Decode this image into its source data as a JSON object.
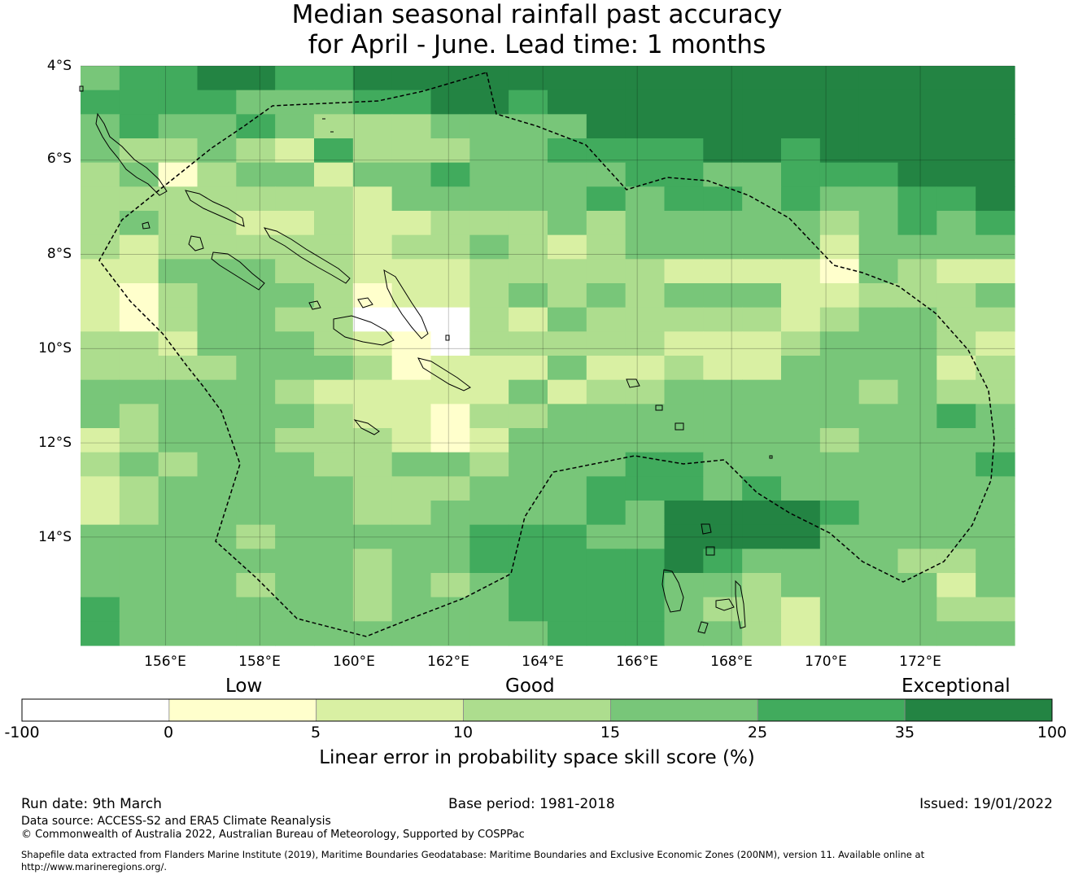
{
  "title_line1": "Median seasonal rainfall past accuracy",
  "title_line2": "for April - June. Lead time: 1 months",
  "map": {
    "lon_min": 154.2,
    "lon_max": 174.0,
    "lat_top": -4.0,
    "lat_bottom": -16.3,
    "lat_ticks": [
      {
        "value": -4,
        "label": "4°S"
      },
      {
        "value": -6,
        "label": "6°S"
      },
      {
        "value": -8,
        "label": "8°S"
      },
      {
        "value": -10,
        "label": "10°S"
      },
      {
        "value": -12,
        "label": "12°S"
      },
      {
        "value": -14,
        "label": "14°S"
      }
    ],
    "lon_ticks": [
      {
        "value": 156,
        "label": "156°E"
      },
      {
        "value": 158,
        "label": "158°E"
      },
      {
        "value": 160,
        "label": "160°E"
      },
      {
        "value": 162,
        "label": "162°E"
      },
      {
        "value": 164,
        "label": "164°E"
      },
      {
        "value": 166,
        "label": "166°E"
      },
      {
        "value": 168,
        "label": "168°E"
      },
      {
        "value": 170,
        "label": "170°E"
      },
      {
        "value": 172,
        "label": "172°E"
      }
    ],
    "grid_note": "rows from 4.0°S southward in 0.55° steps, columns from 154.2°E in 0.833° steps; values are skill categories 0-6",
    "grid": [
      [
        4,
        5,
        5,
        6,
        6,
        5,
        5,
        6,
        6,
        6,
        6,
        6,
        6,
        6,
        6,
        6,
        6,
        6,
        6,
        6,
        6,
        6,
        6,
        6
      ],
      [
        5,
        5,
        5,
        5,
        4,
        4,
        4,
        5,
        5,
        6,
        6,
        5,
        6,
        6,
        6,
        6,
        6,
        6,
        6,
        6,
        6,
        6,
        6,
        6
      ],
      [
        4,
        5,
        4,
        4,
        5,
        4,
        3,
        3,
        3,
        4,
        4,
        4,
        4,
        6,
        6,
        6,
        6,
        6,
        6,
        6,
        6,
        6,
        6,
        6
      ],
      [
        4,
        3,
        3,
        4,
        3,
        2,
        5,
        3,
        3,
        3,
        4,
        4,
        5,
        5,
        5,
        5,
        6,
        6,
        5,
        6,
        6,
        6,
        6,
        6
      ],
      [
        3,
        4,
        1,
        3,
        4,
        4,
        2,
        4,
        4,
        5,
        4,
        4,
        4,
        4,
        5,
        5,
        4,
        4,
        5,
        5,
        5,
        6,
        6,
        6
      ],
      [
        3,
        3,
        3,
        3,
        3,
        3,
        3,
        2,
        4,
        4,
        4,
        4,
        4,
        5,
        4,
        5,
        5,
        4,
        5,
        4,
        4,
        5,
        5,
        6
      ],
      [
        3,
        4,
        3,
        3,
        2,
        2,
        3,
        2,
        2,
        3,
        3,
        3,
        4,
        3,
        4,
        4,
        4,
        4,
        4,
        3,
        4,
        5,
        4,
        5
      ],
      [
        3,
        2,
        3,
        3,
        3,
        3,
        3,
        2,
        3,
        3,
        4,
        3,
        2,
        3,
        4,
        4,
        4,
        4,
        4,
        2,
        4,
        4,
        4,
        4
      ],
      [
        2,
        2,
        4,
        4,
        4,
        3,
        3,
        2,
        2,
        2,
        3,
        3,
        3,
        3,
        3,
        2,
        2,
        2,
        2,
        1,
        4,
        3,
        2,
        2
      ],
      [
        2,
        1,
        3,
        4,
        4,
        4,
        3,
        1,
        2,
        2,
        3,
        4,
        3,
        4,
        3,
        4,
        4,
        4,
        2,
        2,
        3,
        3,
        3,
        4
      ],
      [
        2,
        1,
        3,
        4,
        4,
        3,
        3,
        0,
        0,
        0,
        3,
        2,
        4,
        3,
        3,
        3,
        3,
        3,
        2,
        3,
        4,
        4,
        3,
        3
      ],
      [
        3,
        3,
        2,
        4,
        4,
        4,
        3,
        2,
        1,
        0,
        3,
        3,
        3,
        3,
        3,
        2,
        2,
        2,
        3,
        4,
        4,
        4,
        3,
        2
      ],
      [
        3,
        3,
        3,
        3,
        4,
        4,
        4,
        3,
        1,
        2,
        2,
        2,
        4,
        2,
        2,
        3,
        2,
        2,
        4,
        4,
        4,
        4,
        2,
        3
      ],
      [
        4,
        4,
        4,
        4,
        4,
        3,
        2,
        2,
        2,
        2,
        2,
        4,
        2,
        3,
        3,
        4,
        4,
        4,
        4,
        4,
        3,
        4,
        3,
        3
      ],
      [
        4,
        3,
        4,
        4,
        4,
        4,
        3,
        2,
        2,
        1,
        3,
        3,
        4,
        4,
        4,
        4,
        4,
        4,
        4,
        4,
        4,
        4,
        5,
        4
      ],
      [
        2,
        3,
        4,
        4,
        4,
        3,
        3,
        3,
        2,
        1,
        2,
        4,
        4,
        4,
        4,
        4,
        4,
        4,
        4,
        3,
        4,
        4,
        4,
        4
      ],
      [
        3,
        4,
        3,
        4,
        4,
        4,
        3,
        3,
        4,
        4,
        3,
        4,
        4,
        4,
        5,
        5,
        4,
        4,
        4,
        4,
        4,
        4,
        4,
        5
      ],
      [
        2,
        3,
        4,
        4,
        4,
        4,
        4,
        3,
        3,
        3,
        4,
        4,
        4,
        5,
        5,
        5,
        4,
        5,
        4,
        4,
        4,
        4,
        4,
        4
      ],
      [
        2,
        3,
        4,
        4,
        4,
        4,
        4,
        3,
        3,
        4,
        4,
        4,
        4,
        5,
        4,
        6,
        6,
        6,
        6,
        5,
        4,
        4,
        4,
        4
      ],
      [
        4,
        4,
        4,
        4,
        3,
        4,
        4,
        4,
        4,
        4,
        5,
        5,
        5,
        4,
        4,
        6,
        6,
        6,
        6,
        4,
        4,
        4,
        4,
        4
      ],
      [
        4,
        4,
        4,
        4,
        4,
        4,
        4,
        3,
        4,
        4,
        5,
        5,
        5,
        5,
        5,
        6,
        5,
        4,
        4,
        4,
        4,
        3,
        3,
        4
      ],
      [
        4,
        4,
        4,
        4,
        3,
        4,
        4,
        3,
        4,
        3,
        4,
        5,
        5,
        5,
        5,
        4,
        4,
        3,
        4,
        4,
        4,
        4,
        2,
        4
      ],
      [
        5,
        4,
        4,
        4,
        4,
        4,
        4,
        3,
        4,
        4,
        4,
        5,
        5,
        5,
        5,
        4,
        3,
        3,
        2,
        4,
        4,
        4,
        3,
        3
      ],
      [
        5,
        4,
        4,
        4,
        4,
        4,
        4,
        4,
        4,
        4,
        4,
        4,
        5,
        5,
        5,
        4,
        4,
        3,
        2,
        4,
        4,
        4,
        4,
        4
      ]
    ]
  },
  "colorbar": {
    "colors": [
      "#ffffff",
      "#ffffcc",
      "#d9f0a3",
      "#addd8e",
      "#78c679",
      "#41ab5d",
      "#238443"
    ],
    "ticks": [
      "-100",
      "0",
      "5",
      "10",
      "15",
      "25",
      "35",
      "100"
    ],
    "categories": {
      "low": "Low",
      "good": "Good",
      "exceptional": "Exceptional"
    },
    "title": "Linear error in probability space skill score (%)"
  },
  "footer": {
    "run_date": "Run date: 9th March",
    "base_period": "Base period: 1981-2018",
    "issued": "Issued: 19/01/2022",
    "data_source": "Data source: ACCESS-S2 and ERA5 Climate Reanalysis",
    "copyright": "© Commonwealth of Australia 2022, Australian Bureau of Meteorology, Supported by COSPPac",
    "shapefile_line1": "Shapefile data extracted from Flanders Marine Institute (2019), Maritime Boundaries Geodatabase: Maritime Boundaries and Exclusive Economic Zones (200NM), version 11. Available online at",
    "shapefile_line2": "http://www.marineregions.org/."
  }
}
